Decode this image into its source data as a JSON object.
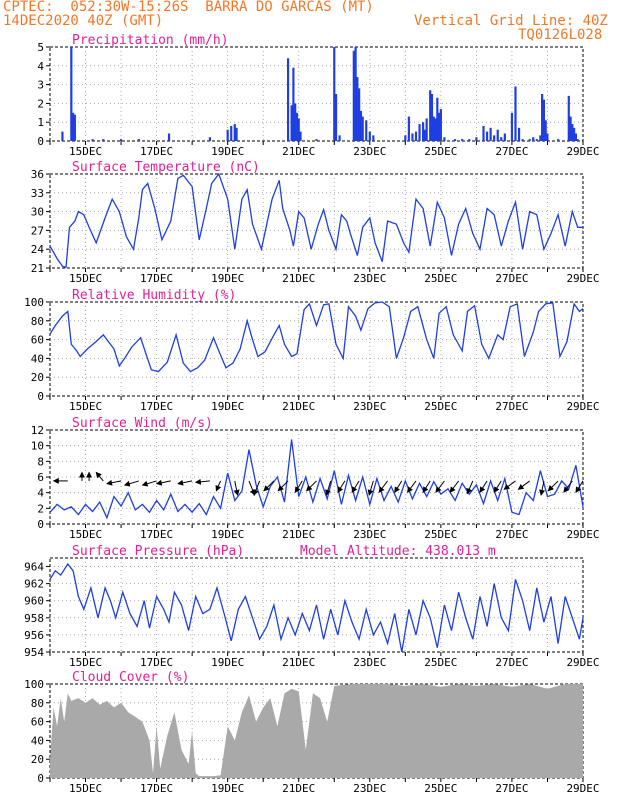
{
  "header": {
    "line1": "CPTEC:  052:30W-15:26S  BARRA DO GARCAS (MT)",
    "line2_left": "14DEC2020 40Z (GMT)",
    "line2_right": "Vertical Grid Line: 40Z",
    "line3_right": "TQ0126L028"
  },
  "colors": {
    "header_text": "#f07828",
    "panel_title": "#e0209a",
    "series_line": "#1f3fe0",
    "cloud_fill": "#a9a9a9",
    "grid": "#999999"
  },
  "x_axis": {
    "date_labels": [
      "15DEC",
      "17DEC",
      "19DEC",
      "21DEC",
      "23DEC",
      "25DEC",
      "27DEC",
      "29DEC"
    ],
    "day_range": [
      14.0,
      29.0
    ]
  },
  "chart_data": [
    {
      "id": "precip",
      "type": "bar",
      "title": "Precipitation (mm/h)",
      "ylim": [
        0,
        5
      ],
      "yticks": [
        "0",
        "1",
        "2",
        "3",
        "4",
        "5"
      ],
      "x": [
        14.35,
        14.6,
        14.65,
        14.7,
        15.2,
        15.5,
        16.0,
        16.5,
        17.35,
        18.5,
        19.0,
        19.1,
        19.2,
        19.25,
        20.7,
        20.8,
        20.85,
        20.9,
        20.95,
        21.0,
        21.05,
        21.5,
        22.0,
        22.05,
        22.15,
        22.55,
        22.6,
        22.65,
        22.7,
        22.75,
        22.8,
        22.9,
        23.0,
        23.1,
        24.0,
        24.1,
        24.2,
        24.3,
        24.4,
        24.5,
        24.55,
        24.6,
        24.7,
        24.75,
        24.8,
        24.85,
        24.9,
        24.95,
        25.0,
        25.1,
        25.4,
        25.6,
        25.8,
        26.0,
        26.2,
        26.3,
        26.4,
        26.5,
        26.6,
        26.7,
        26.8,
        27.0,
        27.1,
        27.2,
        27.3,
        27.5,
        27.6,
        27.7,
        27.8,
        27.85,
        27.9,
        27.95,
        28.0,
        28.3,
        28.6,
        28.65,
        28.7,
        28.75,
        28.8,
        28.85
      ],
      "values": [
        0.5,
        5.0,
        1.5,
        1.4,
        0.1,
        0.1,
        0.1,
        0.1,
        0.4,
        0.2,
        0.6,
        0.8,
        0.9,
        0.7,
        4.4,
        1.9,
        3.9,
        2.0,
        1.5,
        1.2,
        0.5,
        0.1,
        5.0,
        2.5,
        0.3,
        4.8,
        5.0,
        3.4,
        2.8,
        1.6,
        1.3,
        1.1,
        0.5,
        0.3,
        0.3,
        1.3,
        0.4,
        0.5,
        0.9,
        1.0,
        0.6,
        1.2,
        2.7,
        2.5,
        1.3,
        1.2,
        2.3,
        1.5,
        1.7,
        0.2,
        0.1,
        0.1,
        0.1,
        0.2,
        0.8,
        0.5,
        0.7,
        0.3,
        0.6,
        0.2,
        0.4,
        1.5,
        2.9,
        0.7,
        0.1,
        0.1,
        0.2,
        0.1,
        0.3,
        2.5,
        2.2,
        1.1,
        0.4,
        0.1,
        2.4,
        1.3,
        0.9,
        0.7,
        0.4,
        0.1
      ]
    },
    {
      "id": "temp",
      "type": "line",
      "title": "Surface Temperature (nC)",
      "ylim": [
        21,
        36
      ],
      "yticks": [
        "21",
        "24",
        "27",
        "30",
        "33",
        "36"
      ],
      "x": [
        14.0,
        14.2,
        14.35,
        14.45,
        14.55,
        14.7,
        14.8,
        14.95,
        15.1,
        15.3,
        15.55,
        15.75,
        15.95,
        16.15,
        16.35,
        16.5,
        16.6,
        16.75,
        16.95,
        17.15,
        17.4,
        17.6,
        17.75,
        18.0,
        18.2,
        18.4,
        18.55,
        18.75,
        19.0,
        19.2,
        19.4,
        19.55,
        19.7,
        19.95,
        20.25,
        20.45,
        20.55,
        20.75,
        20.85,
        21.0,
        21.15,
        21.35,
        21.55,
        21.7,
        21.85,
        22.05,
        22.2,
        22.35,
        22.45,
        22.65,
        22.8,
        23.0,
        23.15,
        23.35,
        23.5,
        23.75,
        23.95,
        24.1,
        24.3,
        24.5,
        24.7,
        24.9,
        25.1,
        25.3,
        25.5,
        25.7,
        25.9,
        26.1,
        26.3,
        26.5,
        26.7,
        26.9,
        27.1,
        27.3,
        27.5,
        27.7,
        27.9,
        28.1,
        28.3,
        28.5,
        28.7,
        28.85,
        29.0
      ],
      "values": [
        24.5,
        22.5,
        21.3,
        21.1,
        27.5,
        28.5,
        30.0,
        29.5,
        27.5,
        25.0,
        29.0,
        32.0,
        30.0,
        26.0,
        24.0,
        29.0,
        33.5,
        34.5,
        30.5,
        25.5,
        28.5,
        35.3,
        35.8,
        34.0,
        25.5,
        30.5,
        34.5,
        36.0,
        32.0,
        24.0,
        32.0,
        33.5,
        28.0,
        24.0,
        32.0,
        35.0,
        30.5,
        27.0,
        24.5,
        30.0,
        29.0,
        24.0,
        28.0,
        30.3,
        27.0,
        24.0,
        29.5,
        28.5,
        26.5,
        23.0,
        27.5,
        29.0,
        25.0,
        22.0,
        28.5,
        28.0,
        25.0,
        23.5,
        32.0,
        30.5,
        24.5,
        31.5,
        29.0,
        23.0,
        28.0,
        30.5,
        26.5,
        24.0,
        30.5,
        29.5,
        24.5,
        28.5,
        31.5,
        24.0,
        30.0,
        29.5,
        24.0,
        26.5,
        29.5,
        24.5,
        30.0,
        27.5,
        27.5
      ]
    },
    {
      "id": "rh",
      "type": "line",
      "title": "Relative Humidity (%)",
      "ylim": [
        0,
        100
      ],
      "yticks": [
        "0",
        "20",
        "40",
        "60",
        "80",
        "100"
      ],
      "x": [
        14.0,
        14.15,
        14.35,
        14.5,
        14.6,
        14.75,
        14.85,
        15.05,
        15.3,
        15.5,
        15.8,
        15.95,
        16.1,
        16.3,
        16.55,
        16.7,
        16.85,
        17.05,
        17.3,
        17.55,
        17.75,
        17.95,
        18.15,
        18.35,
        18.6,
        18.75,
        18.95,
        19.15,
        19.35,
        19.55,
        19.7,
        19.85,
        20.05,
        20.3,
        20.45,
        20.6,
        20.8,
        20.95,
        21.15,
        21.3,
        21.5,
        21.7,
        21.85,
        22.05,
        22.25,
        22.4,
        22.6,
        22.75,
        22.95,
        23.15,
        23.35,
        23.55,
        23.75,
        23.95,
        24.15,
        24.35,
        24.6,
        24.8,
        24.95,
        25.15,
        25.35,
        25.6,
        25.75,
        25.95,
        26.15,
        26.35,
        26.6,
        26.75,
        26.95,
        27.15,
        27.35,
        27.6,
        27.75,
        27.95,
        28.15,
        28.35,
        28.55,
        28.75,
        28.9,
        29.0
      ],
      "values": [
        66,
        75,
        85,
        90,
        55,
        48,
        42,
        50,
        58,
        65,
        50,
        32,
        40,
        52,
        62,
        45,
        28,
        26,
        36,
        65,
        35,
        26,
        30,
        38,
        62,
        48,
        30,
        35,
        50,
        80,
        60,
        42,
        47,
        65,
        75,
        55,
        42,
        45,
        92,
        98,
        75,
        97,
        98,
        55,
        40,
        95,
        85,
        70,
        93,
        99,
        100,
        95,
        40,
        62,
        90,
        95,
        60,
        40,
        88,
        95,
        65,
        48,
        90,
        96,
        55,
        40,
        65,
        60,
        95,
        98,
        42,
        68,
        90,
        98,
        99,
        42,
        58,
        98,
        90,
        93
      ]
    },
    {
      "id": "wind",
      "type": "line",
      "title": "Surface Wind (m/s)",
      "ylim": [
        0,
        12
      ],
      "yticks": [
        "0",
        "2",
        "4",
        "6",
        "8",
        "10",
        "12"
      ],
      "x": [
        14.0,
        14.2,
        14.4,
        14.6,
        14.8,
        15.0,
        15.2,
        15.4,
        15.6,
        15.8,
        16.0,
        16.2,
        16.4,
        16.6,
        16.8,
        17.0,
        17.2,
        17.4,
        17.6,
        17.8,
        18.0,
        18.2,
        18.4,
        18.6,
        18.8,
        19.0,
        19.2,
        19.4,
        19.6,
        19.8,
        20.0,
        20.2,
        20.4,
        20.6,
        20.8,
        21.0,
        21.2,
        21.4,
        21.6,
        21.8,
        22.0,
        22.2,
        22.4,
        22.6,
        22.8,
        23.0,
        23.2,
        23.4,
        23.6,
        23.8,
        24.0,
        24.2,
        24.4,
        24.6,
        24.8,
        25.0,
        25.2,
        25.4,
        25.6,
        25.8,
        26.0,
        26.2,
        26.4,
        26.6,
        26.8,
        27.0,
        27.2,
        27.4,
        27.6,
        27.8,
        28.0,
        28.2,
        28.4,
        28.6,
        28.8,
        29.0
      ],
      "values": [
        1.5,
        2.5,
        1.8,
        2.2,
        1.2,
        2.5,
        1.6,
        2.8,
        0.8,
        3.5,
        2.3,
        4.0,
        1.8,
        2.5,
        1.5,
        3.0,
        1.8,
        3.8,
        1.6,
        2.5,
        1.5,
        2.6,
        1.2,
        3.5,
        2.0,
        6.5,
        3.0,
        4.2,
        9.5,
        5.0,
        2.2,
        4.8,
        6.0,
        2.8,
        10.8,
        3.5,
        6.0,
        2.8,
        5.8,
        3.2,
        6.8,
        2.5,
        6.2,
        3.0,
        6.0,
        2.5,
        5.8,
        3.0,
        4.8,
        2.8,
        5.5,
        3.2,
        5.2,
        3.5,
        5.4,
        3.8,
        4.5,
        3.0,
        5.2,
        3.8,
        5.0,
        2.6,
        5.5,
        3.0,
        5.8,
        1.5,
        1.2,
        4.0,
        3.0,
        6.8,
        3.5,
        3.8,
        5.5,
        4.5,
        7.5,
        2.2
      ]
    },
    {
      "id": "pressure",
      "type": "line",
      "title": "Surface Pressure (hPa)",
      "annotation": "Model Altitude: 438.013 m",
      "ylim": [
        954,
        965
      ],
      "yticks": [
        "954",
        "956",
        "958",
        "960",
        "962",
        "964"
      ],
      "x": [
        14.0,
        14.15,
        14.3,
        14.5,
        14.65,
        14.8,
        14.95,
        15.15,
        15.35,
        15.55,
        15.7,
        15.85,
        16.05,
        16.25,
        16.45,
        16.65,
        16.8,
        17.0,
        17.2,
        17.35,
        17.5,
        17.7,
        17.9,
        18.1,
        18.3,
        18.5,
        18.7,
        18.9,
        19.1,
        19.3,
        19.5,
        19.7,
        19.9,
        20.1,
        20.3,
        20.5,
        20.7,
        20.9,
        21.1,
        21.3,
        21.5,
        21.7,
        21.9,
        22.1,
        22.3,
        22.5,
        22.7,
        22.9,
        23.1,
        23.3,
        23.5,
        23.7,
        23.9,
        24.1,
        24.3,
        24.5,
        24.7,
        24.9,
        25.1,
        25.3,
        25.5,
        25.7,
        25.9,
        26.1,
        26.3,
        26.5,
        26.7,
        26.9,
        27.1,
        27.3,
        27.5,
        27.7,
        27.9,
        28.1,
        28.3,
        28.5,
        28.7,
        28.9,
        29.0
      ],
      "values": [
        962.5,
        963.5,
        963.0,
        964.3,
        963.5,
        960.5,
        959.0,
        961.5,
        958.0,
        961.5,
        960.0,
        958.0,
        961.0,
        958.5,
        957.0,
        960.0,
        956.8,
        960.5,
        959.0,
        957.5,
        961.0,
        959.5,
        956.5,
        960.5,
        958.5,
        959.0,
        961.5,
        958.5,
        955.3,
        959.0,
        960.5,
        958.0,
        955.5,
        957.0,
        959.5,
        955.5,
        958.0,
        956.0,
        958.5,
        956.5,
        959.5,
        955.5,
        959.0,
        956.0,
        960.0,
        957.5,
        955.5,
        959.0,
        956.0,
        957.5,
        955.0,
        958.5,
        954.0,
        959.0,
        956.0,
        960.0,
        958.0,
        954.5,
        959.5,
        956.5,
        961.0,
        958.0,
        955.5,
        960.5,
        957.0,
        962.0,
        958.0,
        956.5,
        962.5,
        960.0,
        956.5,
        961.5,
        957.5,
        960.5,
        955.0,
        960.5,
        958.0,
        955.5,
        958.0
      ]
    },
    {
      "id": "cloud",
      "type": "area",
      "title": "Cloud Cover (%)",
      "ylim": [
        0,
        100
      ],
      "yticks": [
        "0",
        "20",
        "40",
        "60",
        "80",
        "100"
      ],
      "x": [
        14.0,
        14.1,
        14.2,
        14.3,
        14.4,
        14.5,
        14.6,
        14.8,
        15.0,
        15.2,
        15.4,
        15.6,
        15.8,
        16.0,
        16.2,
        16.4,
        16.6,
        16.8,
        16.9,
        17.0,
        17.1,
        17.3,
        17.5,
        17.7,
        17.9,
        18.0,
        18.1,
        18.2,
        18.4,
        18.6,
        18.8,
        19.0,
        19.2,
        19.4,
        19.6,
        19.8,
        20.0,
        20.2,
        20.4,
        20.6,
        20.8,
        21.0,
        21.2,
        21.4,
        21.6,
        21.8,
        22.0,
        22.5,
        23.0,
        23.5,
        24.0,
        24.5,
        25.0,
        25.5,
        26.0,
        26.5,
        27.0,
        27.5,
        28.0,
        28.5,
        29.0
      ],
      "values": [
        20,
        75,
        55,
        85,
        60,
        90,
        82,
        85,
        80,
        85,
        78,
        82,
        75,
        80,
        70,
        65,
        60,
        40,
        5,
        55,
        10,
        45,
        70,
        30,
        15,
        50,
        5,
        2,
        2,
        2,
        3,
        55,
        40,
        70,
        88,
        60,
        75,
        85,
        55,
        90,
        95,
        92,
        30,
        90,
        85,
        60,
        98,
        100,
        100,
        100,
        98,
        100,
        97,
        100,
        98,
        100,
        97,
        100,
        95,
        100,
        100
      ]
    }
  ],
  "wind_vectors": {
    "x": [
      14.5,
      14.9,
      15.1,
      15.5,
      16.0,
      16.5,
      17.0,
      17.4,
      18.0,
      18.5,
      18.8,
      19.2,
      19.6,
      19.9,
      20.3,
      20.7,
      21.1,
      21.5,
      21.9,
      22.3,
      22.7,
      23.1,
      23.5,
      23.9,
      24.3,
      24.7,
      25.1,
      25.5,
      25.9,
      26.3,
      26.7,
      27.1,
      27.5,
      27.9,
      28.3,
      28.7,
      29.0
    ],
    "dx": [
      -1,
      0,
      0,
      -0.5,
      -1,
      -1,
      -1,
      -1,
      -1,
      -1,
      -0.3,
      0.2,
      0.4,
      -0.4,
      -0.7,
      -0.7,
      -0.5,
      -0.7,
      -0.3,
      -0.5,
      -0.5,
      -0.3,
      -0.6,
      -0.5,
      -0.6,
      -0.5,
      -0.6,
      -0.6,
      -0.4,
      -0.5,
      -0.5,
      -0.8,
      -0.8,
      -0.2,
      -0.7,
      -0.6,
      -0.5
    ],
    "dy": [
      0,
      0.6,
      0.6,
      0.6,
      -0.2,
      -0.3,
      -0.3,
      -0.2,
      -0.2,
      -0.1,
      -0.7,
      -1,
      -1,
      -1,
      -0.7,
      -0.7,
      -0.8,
      -0.7,
      -1,
      -0.8,
      -0.8,
      -1,
      -0.8,
      -0.8,
      -0.8,
      -0.8,
      -0.8,
      -0.8,
      -0.9,
      -0.8,
      -0.8,
      -0.6,
      -0.6,
      -1,
      -0.7,
      -0.8,
      -0.8
    ]
  }
}
